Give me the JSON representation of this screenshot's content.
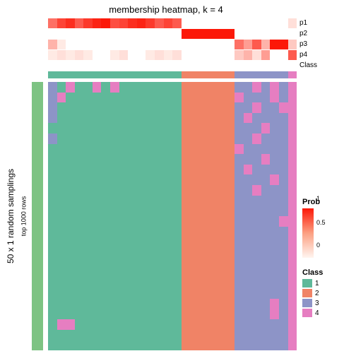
{
  "title": "membership heatmap, k = 4",
  "ylabel_outer": "50 x 1 random samplings",
  "ylabel_inner": "top 1000 rows",
  "row_labels": [
    "p1",
    "p2",
    "p3",
    "p4",
    "Class"
  ],
  "legend_prob": {
    "title": "Prob",
    "ticks": [
      "1",
      "0.5",
      "0"
    ]
  },
  "legend_class": {
    "title": "Class",
    "items": [
      {
        "label": "1",
        "color": "#5fb99a"
      },
      {
        "label": "2",
        "color": "#f08366"
      },
      {
        "label": "3",
        "color": "#8d94c7"
      },
      {
        "label": "4",
        "color": "#e67ec1"
      }
    ]
  },
  "colors": {
    "class1": "#5fb99a",
    "class2": "#f08366",
    "class3": "#8d94c7",
    "class4": "#e67ec1",
    "side_green": "#7dc383",
    "prob_grad_top": "#fc1808",
    "prob_grad_mid": "#fca082",
    "prob_grad_bot": "#fff5f0",
    "white": "#ffffff"
  },
  "ncols": 28,
  "class_assign": [
    1,
    1,
    1,
    1,
    1,
    1,
    1,
    1,
    1,
    1,
    1,
    1,
    1,
    1,
    1,
    2,
    2,
    2,
    2,
    2,
    2,
    3,
    3,
    3,
    3,
    3,
    3,
    4
  ],
  "p_rows": {
    "p1": [
      0.6,
      0.8,
      0.9,
      0.7,
      0.85,
      0.95,
      1.0,
      0.75,
      0.8,
      0.9,
      0.95,
      0.85,
      0.7,
      0.8,
      0.7,
      0,
      0,
      0,
      0,
      0,
      0,
      0,
      0,
      0,
      0,
      0,
      0,
      0.1
    ],
    "p2": [
      0,
      0,
      0,
      0,
      0,
      0,
      0,
      0,
      0,
      0,
      0,
      0,
      0,
      0,
      0,
      1,
      1,
      1,
      1,
      1,
      1,
      0,
      0,
      0,
      0,
      0,
      0,
      0
    ],
    "p3": [
      0.3,
      0.05,
      0,
      0,
      0,
      0,
      0,
      0,
      0,
      0,
      0,
      0,
      0,
      0,
      0,
      0,
      0,
      0,
      0,
      0,
      0,
      0.6,
      0.4,
      0.7,
      0.3,
      1,
      1,
      0.2
    ],
    "p4": [
      0.05,
      0.1,
      0.05,
      0.1,
      0.05,
      0,
      0,
      0.05,
      0.1,
      0,
      0,
      0.05,
      0.1,
      0.05,
      0.1,
      0,
      0,
      0,
      0,
      0,
      0,
      0.2,
      0.3,
      0.1,
      0.4,
      0,
      0,
      0.7
    ]
  },
  "main_rows": 26,
  "main_grid": [
    [
      3,
      1,
      4,
      1,
      1,
      4,
      1,
      4,
      1,
      1,
      1,
      1,
      1,
      1,
      1,
      2,
      2,
      2,
      2,
      2,
      2,
      3,
      3,
      4,
      3,
      4,
      3,
      4
    ],
    [
      3,
      4,
      1,
      1,
      1,
      1,
      1,
      1,
      1,
      1,
      1,
      1,
      1,
      1,
      1,
      2,
      2,
      2,
      2,
      2,
      2,
      4,
      3,
      3,
      3,
      4,
      3,
      4
    ],
    [
      3,
      1,
      1,
      1,
      1,
      1,
      1,
      1,
      1,
      1,
      1,
      1,
      1,
      1,
      1,
      2,
      2,
      2,
      2,
      2,
      2,
      3,
      3,
      4,
      3,
      3,
      4,
      4
    ],
    [
      3,
      1,
      1,
      1,
      1,
      1,
      1,
      1,
      1,
      1,
      1,
      1,
      1,
      1,
      1,
      2,
      2,
      2,
      2,
      2,
      2,
      3,
      4,
      3,
      3,
      3,
      3,
      4
    ],
    [
      1,
      1,
      1,
      1,
      1,
      1,
      1,
      1,
      1,
      1,
      1,
      1,
      1,
      1,
      1,
      2,
      2,
      2,
      2,
      2,
      2,
      3,
      3,
      3,
      4,
      3,
      3,
      4
    ],
    [
      3,
      1,
      1,
      1,
      1,
      1,
      1,
      1,
      1,
      1,
      1,
      1,
      1,
      1,
      1,
      2,
      2,
      2,
      2,
      2,
      2,
      3,
      3,
      4,
      3,
      3,
      3,
      4
    ],
    [
      1,
      1,
      1,
      1,
      1,
      1,
      1,
      1,
      1,
      1,
      1,
      1,
      1,
      1,
      1,
      2,
      2,
      2,
      2,
      2,
      2,
      4,
      3,
      3,
      3,
      3,
      3,
      4
    ],
    [
      1,
      1,
      1,
      1,
      1,
      1,
      1,
      1,
      1,
      1,
      1,
      1,
      1,
      1,
      1,
      2,
      2,
      2,
      2,
      2,
      2,
      3,
      3,
      3,
      4,
      3,
      3,
      4
    ],
    [
      1,
      1,
      1,
      1,
      1,
      1,
      1,
      1,
      1,
      1,
      1,
      1,
      1,
      1,
      1,
      2,
      2,
      2,
      2,
      2,
      2,
      3,
      4,
      3,
      3,
      3,
      3,
      4
    ],
    [
      1,
      1,
      1,
      1,
      1,
      1,
      1,
      1,
      1,
      1,
      1,
      1,
      1,
      1,
      1,
      2,
      2,
      2,
      2,
      2,
      2,
      3,
      3,
      3,
      3,
      4,
      3,
      4
    ],
    [
      1,
      1,
      1,
      1,
      1,
      1,
      1,
      1,
      1,
      1,
      1,
      1,
      1,
      1,
      1,
      2,
      2,
      2,
      2,
      2,
      2,
      3,
      3,
      4,
      3,
      3,
      3,
      4
    ],
    [
      1,
      1,
      1,
      1,
      1,
      1,
      1,
      1,
      1,
      1,
      1,
      1,
      1,
      1,
      1,
      2,
      2,
      2,
      2,
      2,
      2,
      3,
      3,
      3,
      3,
      3,
      3,
      4
    ],
    [
      1,
      1,
      1,
      1,
      1,
      1,
      1,
      1,
      1,
      1,
      1,
      1,
      1,
      1,
      1,
      2,
      2,
      2,
      2,
      2,
      2,
      3,
      3,
      3,
      3,
      3,
      3,
      4
    ],
    [
      1,
      1,
      1,
      1,
      1,
      1,
      1,
      1,
      1,
      1,
      1,
      1,
      1,
      1,
      1,
      2,
      2,
      2,
      2,
      2,
      2,
      3,
      3,
      3,
      3,
      3,
      4,
      4
    ],
    [
      1,
      1,
      1,
      1,
      1,
      1,
      1,
      1,
      1,
      1,
      1,
      1,
      1,
      1,
      1,
      2,
      2,
      2,
      2,
      2,
      2,
      3,
      3,
      3,
      3,
      3,
      3,
      4
    ],
    [
      1,
      1,
      1,
      1,
      1,
      1,
      1,
      1,
      1,
      1,
      1,
      1,
      1,
      1,
      1,
      2,
      2,
      2,
      2,
      2,
      2,
      3,
      3,
      3,
      3,
      3,
      3,
      4
    ],
    [
      1,
      1,
      1,
      1,
      1,
      1,
      1,
      1,
      1,
      1,
      1,
      1,
      1,
      1,
      1,
      2,
      2,
      2,
      2,
      2,
      2,
      3,
      3,
      3,
      3,
      3,
      3,
      4
    ],
    [
      1,
      1,
      1,
      1,
      1,
      1,
      1,
      1,
      1,
      1,
      1,
      1,
      1,
      1,
      1,
      2,
      2,
      2,
      2,
      2,
      2,
      3,
      3,
      3,
      3,
      3,
      3,
      4
    ],
    [
      1,
      1,
      1,
      1,
      1,
      1,
      1,
      1,
      1,
      1,
      1,
      1,
      1,
      1,
      1,
      2,
      2,
      2,
      2,
      2,
      2,
      3,
      3,
      3,
      3,
      3,
      3,
      4
    ],
    [
      1,
      1,
      1,
      1,
      1,
      1,
      1,
      1,
      1,
      1,
      1,
      1,
      1,
      1,
      1,
      2,
      2,
      2,
      2,
      2,
      2,
      3,
      3,
      3,
      3,
      3,
      3,
      4
    ],
    [
      1,
      1,
      1,
      1,
      1,
      1,
      1,
      1,
      1,
      1,
      1,
      1,
      1,
      1,
      1,
      2,
      2,
      2,
      2,
      2,
      2,
      3,
      3,
      3,
      3,
      3,
      3,
      4
    ],
    [
      1,
      1,
      1,
      1,
      1,
      1,
      1,
      1,
      1,
      1,
      1,
      1,
      1,
      1,
      1,
      2,
      2,
      2,
      2,
      2,
      2,
      3,
      3,
      3,
      3,
      4,
      3,
      4
    ],
    [
      1,
      1,
      1,
      1,
      1,
      1,
      1,
      1,
      1,
      1,
      1,
      1,
      1,
      1,
      1,
      2,
      2,
      2,
      2,
      2,
      2,
      3,
      3,
      3,
      3,
      4,
      3,
      4
    ],
    [
      1,
      4,
      4,
      1,
      1,
      1,
      1,
      1,
      1,
      1,
      1,
      1,
      1,
      1,
      1,
      2,
      2,
      2,
      2,
      2,
      2,
      3,
      3,
      3,
      3,
      3,
      3,
      4
    ],
    [
      1,
      1,
      1,
      1,
      1,
      1,
      1,
      1,
      1,
      1,
      1,
      1,
      1,
      1,
      1,
      2,
      2,
      2,
      2,
      2,
      2,
      3,
      3,
      3,
      3,
      3,
      3,
      4
    ],
    [
      1,
      1,
      1,
      1,
      1,
      1,
      1,
      1,
      1,
      1,
      1,
      1,
      1,
      1,
      1,
      2,
      2,
      2,
      2,
      2,
      2,
      3,
      3,
      3,
      3,
      3,
      3,
      4
    ]
  ]
}
